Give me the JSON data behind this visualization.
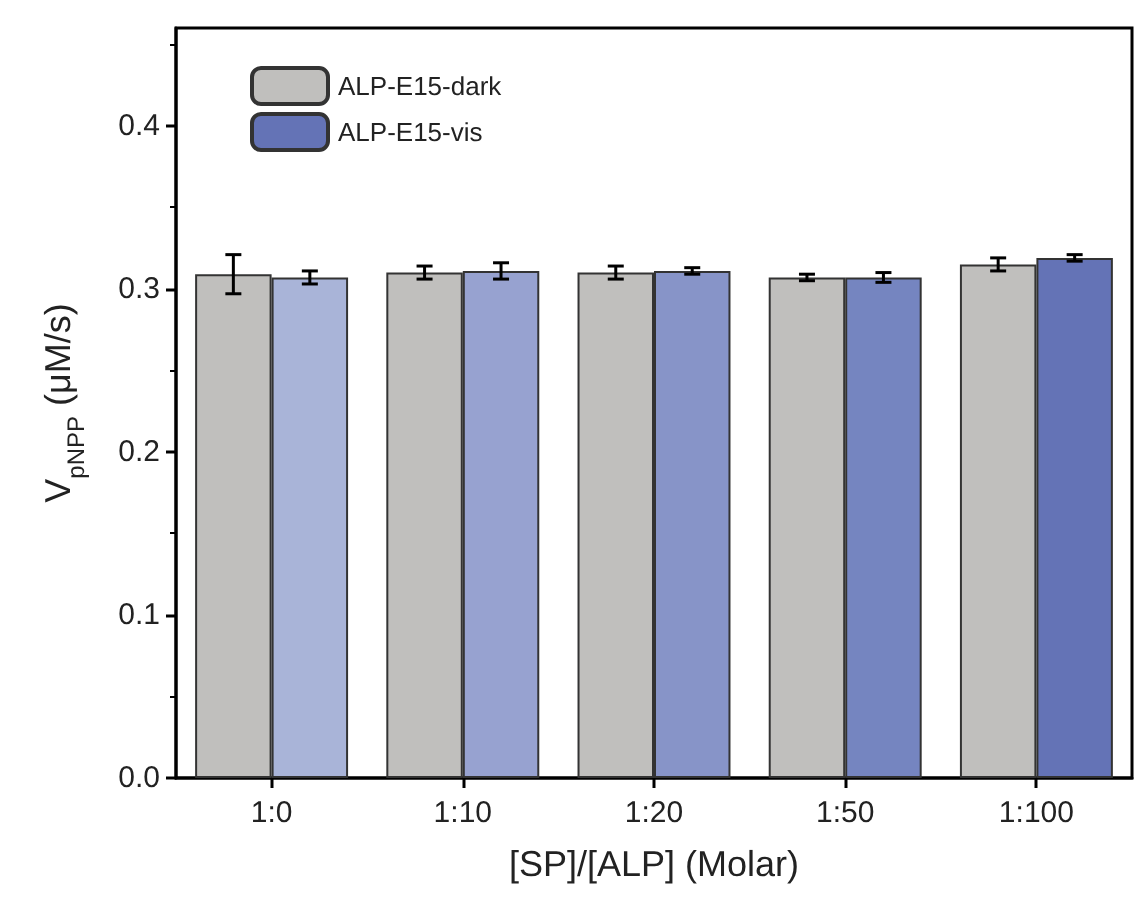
{
  "chart_data": {
    "type": "bar",
    "xlabel": "[SP]/[ALP] (Molar)",
    "ylabel": "V$_{pNPP}$ (μM/s)",
    "categories": [
      "1:0",
      "1:10",
      "1:20",
      "1:50",
      "1:100"
    ],
    "series": [
      {
        "name": "ALP-E15-dark",
        "color": "#c0bfbd",
        "values": [
          0.309,
          0.31,
          0.31,
          0.307,
          0.315
        ],
        "errors": [
          0.012,
          0.004,
          0.004,
          0.002,
          0.004
        ]
      },
      {
        "name": "ALP-E15-vis",
        "color": "#6473b6",
        "colors": [
          "#a9b4d8",
          "#97a2d0",
          "#8794c8",
          "#7585c0",
          "#6473b6"
        ],
        "values": [
          0.307,
          0.311,
          0.311,
          0.307,
          0.319
        ],
        "errors": [
          0.004,
          0.005,
          0.002,
          0.003,
          0.002
        ]
      }
    ],
    "ylim": [
      0,
      0.46
    ],
    "yticks": [
      {
        "value": 0,
        "label": "0.0"
      },
      0.1,
      0.2,
      0.3,
      0.4
    ],
    "grid": false,
    "legend": "top left"
  }
}
